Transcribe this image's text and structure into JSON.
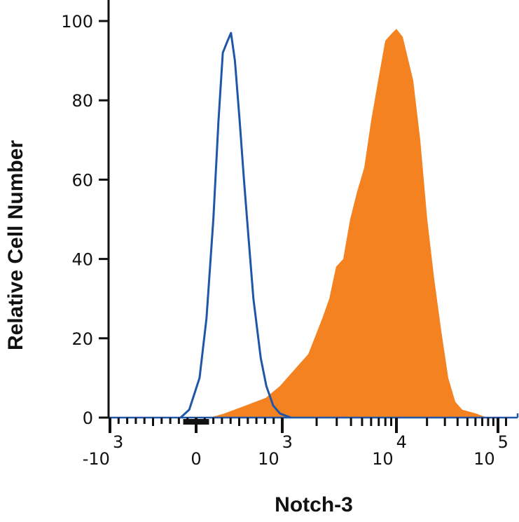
{
  "chart_data": {
    "type": "area",
    "title": "",
    "xlabel": "Notch-3",
    "ylabel": "Relative Cell Number",
    "x_scale": "biexponential",
    "xlim": [
      -1300,
      130000
    ],
    "ylim": [
      0,
      100
    ],
    "grid": false,
    "y_ticks": [
      {
        "value": 0,
        "label": "0"
      },
      {
        "value": 20,
        "label": "20"
      },
      {
        "value": 40,
        "label": "40"
      },
      {
        "value": 60,
        "label": "60"
      },
      {
        "value": 80,
        "label": "80"
      },
      {
        "value": 100,
        "label": "100"
      }
    ],
    "x_ticks": [
      {
        "value": -1000,
        "base": "-10",
        "exp": "3"
      },
      {
        "value": 0,
        "base": "0",
        "exp": ""
      },
      {
        "value": 1000,
        "base": "10",
        "exp": "3"
      },
      {
        "value": 10000,
        "base": "10",
        "exp": "4"
      },
      {
        "value": 100000,
        "base": "10",
        "exp": "5"
      }
    ],
    "series": [
      {
        "style": "outline",
        "color": "#1f56a8",
        "points": [
          [
            -180,
            0
          ],
          [
            -80,
            2
          ],
          [
            40,
            10
          ],
          [
            120,
            25
          ],
          [
            200,
            50
          ],
          [
            260,
            75
          ],
          [
            310,
            92
          ],
          [
            365,
            95
          ],
          [
            405,
            97
          ],
          [
            450,
            90
          ],
          [
            505,
            75
          ],
          [
            555,
            60
          ],
          [
            610,
            45
          ],
          [
            665,
            30
          ],
          [
            750,
            15
          ],
          [
            815,
            8
          ],
          [
            895,
            3
          ],
          [
            975,
            1
          ],
          [
            1190,
            0
          ]
        ]
      },
      {
        "style": "filled",
        "color": "#f58220",
        "points": [
          [
            160,
            0
          ],
          [
            325,
            1
          ],
          [
            570,
            3
          ],
          [
            810,
            5
          ],
          [
            975,
            8
          ],
          [
            1270,
            12
          ],
          [
            1690,
            16
          ],
          [
            2240,
            25
          ],
          [
            2580,
            30
          ],
          [
            2960,
            38
          ],
          [
            3420,
            40
          ],
          [
            3930,
            50
          ],
          [
            4530,
            57
          ],
          [
            5220,
            63
          ],
          [
            6010,
            75
          ],
          [
            6920,
            85
          ],
          [
            7980,
            95
          ],
          [
            9190,
            97
          ],
          [
            10000,
            98
          ],
          [
            11530,
            96
          ],
          [
            14640,
            85
          ],
          [
            17160,
            70
          ],
          [
            20100,
            50
          ],
          [
            23550,
            35
          ],
          [
            27600,
            22
          ],
          [
            32370,
            10
          ],
          [
            37950,
            4
          ],
          [
            44460,
            2
          ],
          [
            61100,
            1
          ],
          [
            77600,
            0
          ]
        ]
      }
    ]
  }
}
